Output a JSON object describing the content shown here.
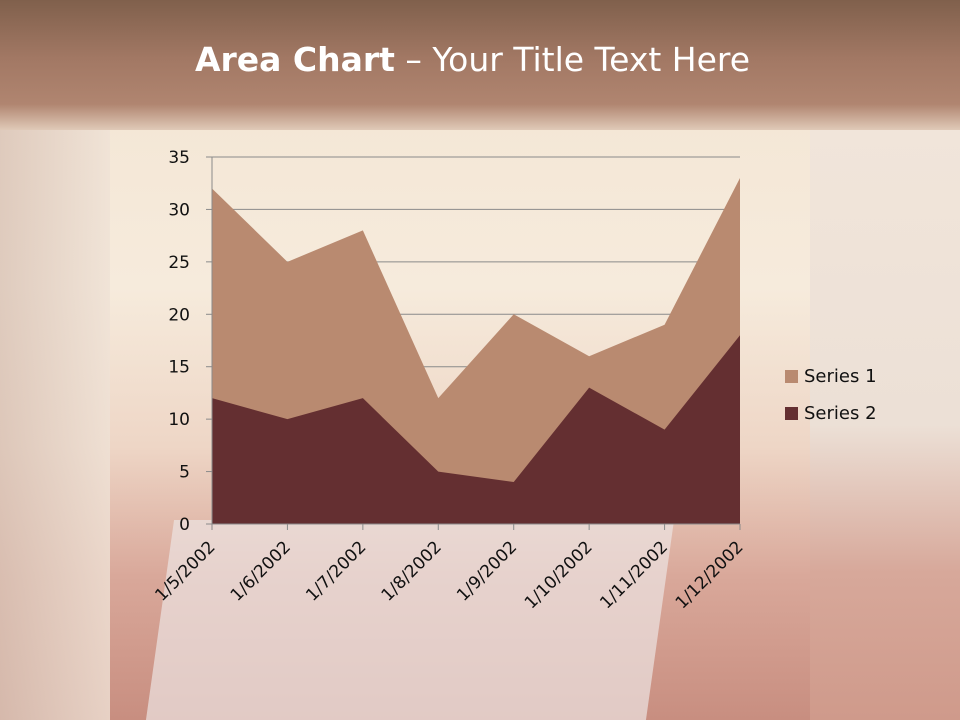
{
  "title": {
    "bold": "Area Chart",
    "rest": " – Your Title Text Here"
  },
  "chart_data": {
    "type": "area",
    "title": "Area Chart – Your Title Text Here",
    "categories": [
      "1/5/2002",
      "1/6/2002",
      "1/7/2002",
      "1/8/2002",
      "1/9/2002",
      "1/10/2002",
      "1/11/2002",
      "1/12/2002"
    ],
    "series": [
      {
        "name": "Series 1",
        "values": [
          32,
          25,
          28,
          12,
          20,
          16,
          19,
          33
        ],
        "color": "#b98a70"
      },
      {
        "name": "Series 2",
        "values": [
          12,
          10,
          12,
          5,
          4,
          13,
          9,
          18
        ],
        "color": "#642f31"
      }
    ],
    "ylim": [
      0,
      35
    ],
    "yticks": [
      0,
      5,
      10,
      15,
      20,
      25,
      30,
      35
    ],
    "grid": true,
    "legend": "right"
  }
}
